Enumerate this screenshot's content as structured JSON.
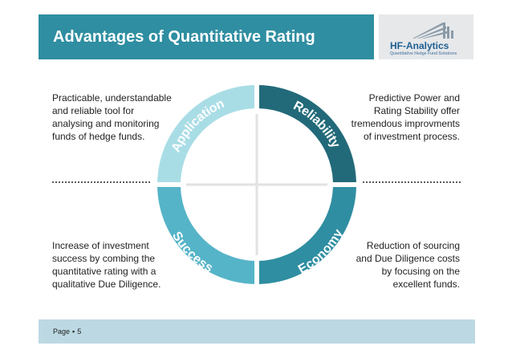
{
  "header": {
    "title": "Advantages of Quantitative Rating"
  },
  "logo": {
    "name": "HF-Analytics",
    "tagline": "Quantitative Hedge Fund Solutions"
  },
  "blocks": {
    "top_left": [
      "Practicable, understandable",
      "and reliable tool for",
      "analysing and monitoring",
      "funds of hedge funds."
    ],
    "top_right": [
      "Predictive Power and",
      "Rating Stability offer",
      "tremendous improvments",
      "of investment process."
    ],
    "bottom_left": [
      "Increase of investment",
      "success by combing the",
      "quantitative rating with a",
      "qualitative Due Diligence."
    ],
    "bottom_right": [
      "Reduction of sourcing",
      "and Due Diligence costs",
      "by focusing on the",
      "excellent funds."
    ]
  },
  "cycle": {
    "segments": [
      {
        "label": "Application",
        "color": "#a9dde6"
      },
      {
        "label": "Reliability",
        "color": "#226a79"
      },
      {
        "label": "Success",
        "color": "#56b4c8"
      },
      {
        "label": "Economy",
        "color": "#2f8ea1"
      }
    ]
  },
  "footer": {
    "page_label": "Page",
    "separator": "▪",
    "page_number": "5"
  }
}
